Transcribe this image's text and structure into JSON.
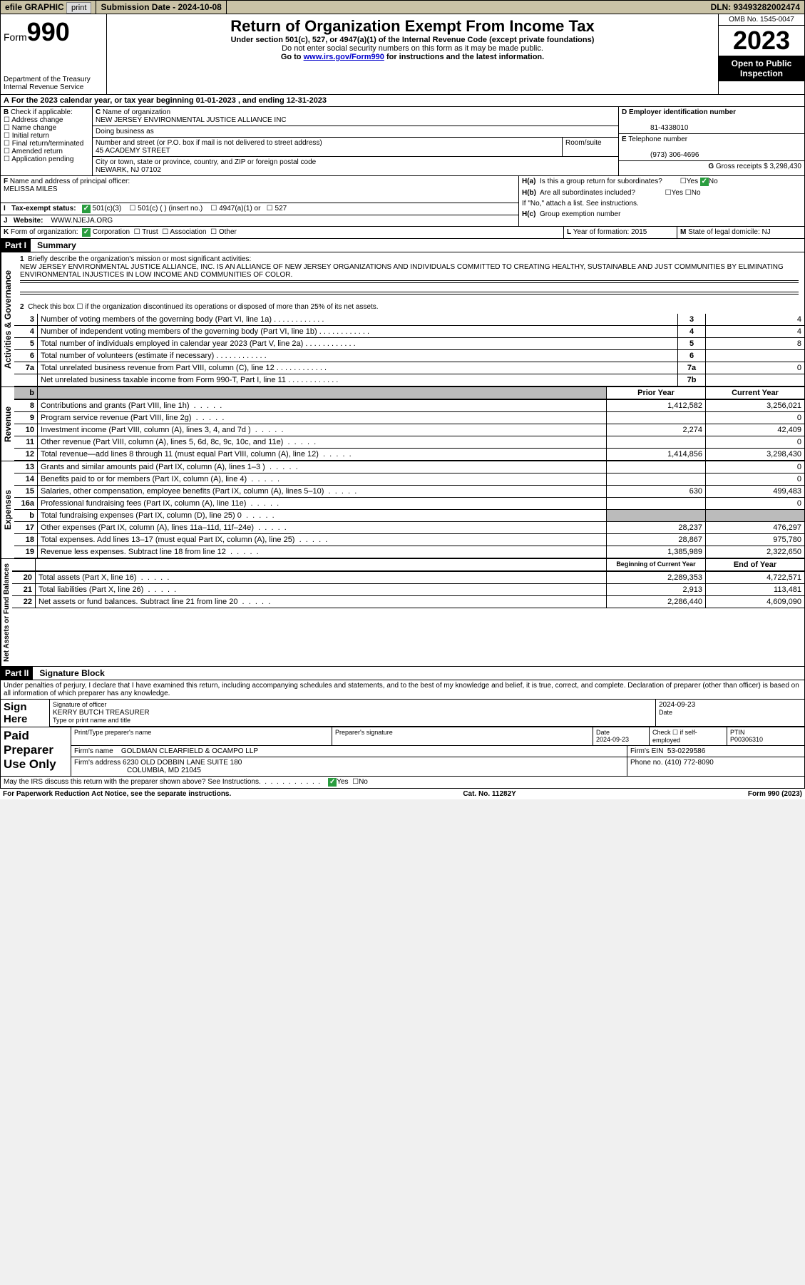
{
  "topbar": {
    "efile": "efile GRAPHIC",
    "print": "print",
    "subdate_label": "Submission Date - 2024-10-08",
    "dln": "DLN: 93493282002474"
  },
  "header": {
    "form_label": "Form",
    "form_number": "990",
    "dept": "Department of the Treasury",
    "irs": "Internal Revenue Service",
    "title": "Return of Organization Exempt From Income Tax",
    "subtitle": "Under section 501(c), 527, or 4947(a)(1) of the Internal Revenue Code (except private foundations)",
    "note1": "Do not enter social security numbers on this form as it may be made public.",
    "note2_pre": "Go to ",
    "note2_link": "www.irs.gov/Form990",
    "note2_post": " for instructions and the latest information.",
    "omb": "OMB No. 1545-0047",
    "year": "2023",
    "open": "Open to Public Inspection"
  },
  "A": {
    "line": "For the 2023 calendar year, or tax year beginning 01-01-2023    , and ending 12-31-2023"
  },
  "B": {
    "label": "Check if applicable:",
    "opts": [
      "Address change",
      "Name change",
      "Initial return",
      "Final return/terminated",
      "Amended return",
      "Application pending"
    ]
  },
  "C": {
    "name_label": "Name of organization",
    "name": "NEW JERSEY ENVIRONMENTAL JUSTICE ALLIANCE INC",
    "dba_label": "Doing business as",
    "addr_label": "Number and street (or P.O. box if mail is not delivered to street address)",
    "room_label": "Room/suite",
    "addr": "45 ACADEMY STREET",
    "city_label": "City or town, state or province, country, and ZIP or foreign postal code",
    "city": "NEWARK, NJ  07102"
  },
  "D": {
    "label": "Employer identification number",
    "value": "81-4338010"
  },
  "E": {
    "label": "Telephone number",
    "value": "(973) 306-4696"
  },
  "G": {
    "label": "Gross receipts $",
    "value": "3,298,430"
  },
  "F": {
    "label": "Name and address of principal officer:",
    "value": "MELISSA MILES"
  },
  "H": {
    "a": "Is this a group return for subordinates?",
    "b": "Are all subordinates included?",
    "bnote": "If \"No,\" attach a list. See instructions.",
    "c": "Group exemption number",
    "yes": "Yes",
    "no": "No"
  },
  "I": {
    "label": "Tax-exempt status:",
    "o1": "501(c)(3)",
    "o2": "501(c) (  ) (insert no.)",
    "o3": "4947(a)(1) or",
    "o4": "527"
  },
  "J": {
    "label": "Website:",
    "value": "WWW.NJEJA.ORG"
  },
  "K": {
    "label": "Form of organization:",
    "o1": "Corporation",
    "o2": "Trust",
    "o3": "Association",
    "o4": "Other"
  },
  "L": {
    "label": "Year of formation:",
    "value": "2015"
  },
  "M": {
    "label": "State of legal domicile:",
    "value": "NJ"
  },
  "part1": {
    "hdr": "Part I",
    "title": "Summary",
    "q1": "Briefly describe the organization's mission or most significant activities:",
    "q1text": "NEW JERSEY ENVIRONMENTAL JUSTICE ALLIANCE, INC. IS AN ALLIANCE OF NEW JERSEY ORGANIZATIONS AND INDIVIDUALS COMMITTED TO CREATING HEALTHY, SUSTAINABLE AND JUST COMMUNITIES BY ELIMINATING ENVIRONMENTAL INJUSTICES IN LOW INCOME AND COMMUNITIES OF COLOR.",
    "q2": "Check this box ☐ if the organization discontinued its operations or disposed of more than 25% of its net assets.",
    "rows_gov": [
      {
        "n": "3",
        "t": "Number of voting members of the governing body (Part VI, line 1a)",
        "b": "3",
        "v": "4"
      },
      {
        "n": "4",
        "t": "Number of independent voting members of the governing body (Part VI, line 1b)",
        "b": "4",
        "v": "4"
      },
      {
        "n": "5",
        "t": "Total number of individuals employed in calendar year 2023 (Part V, line 2a)",
        "b": "5",
        "v": "8"
      },
      {
        "n": "6",
        "t": "Total number of volunteers (estimate if necessary)",
        "b": "6",
        "v": ""
      },
      {
        "n": "7a",
        "t": "Total unrelated business revenue from Part VIII, column (C), line 12",
        "b": "7a",
        "v": "0"
      },
      {
        "n": "",
        "t": "Net unrelated business taxable income from Form 990-T, Part I, line 11",
        "b": "7b",
        "v": ""
      }
    ],
    "prior": "Prior Year",
    "current": "Current Year",
    "rows_rev": [
      {
        "n": "8",
        "t": "Contributions and grants (Part VIII, line 1h)",
        "p": "1,412,582",
        "c": "3,256,021"
      },
      {
        "n": "9",
        "t": "Program service revenue (Part VIII, line 2g)",
        "p": "",
        "c": "0"
      },
      {
        "n": "10",
        "t": "Investment income (Part VIII, column (A), lines 3, 4, and 7d )",
        "p": "2,274",
        "c": "42,409"
      },
      {
        "n": "11",
        "t": "Other revenue (Part VIII, column (A), lines 5, 6d, 8c, 9c, 10c, and 11e)",
        "p": "",
        "c": "0"
      },
      {
        "n": "12",
        "t": "Total revenue—add lines 8 through 11 (must equal Part VIII, column (A), line 12)",
        "p": "1,414,856",
        "c": "3,298,430"
      }
    ],
    "rows_exp": [
      {
        "n": "13",
        "t": "Grants and similar amounts paid (Part IX, column (A), lines 1–3 )",
        "p": "",
        "c": "0"
      },
      {
        "n": "14",
        "t": "Benefits paid to or for members (Part IX, column (A), line 4)",
        "p": "",
        "c": "0"
      },
      {
        "n": "15",
        "t": "Salaries, other compensation, employee benefits (Part IX, column (A), lines 5–10)",
        "p": "630",
        "c": "499,483"
      },
      {
        "n": "16a",
        "t": "Professional fundraising fees (Part IX, column (A), line 11e)",
        "p": "",
        "c": "0"
      },
      {
        "n": "b",
        "t": "Total fundraising expenses (Part IX, column (D), line 25) 0",
        "p": "GRAY",
        "c": "GRAY"
      },
      {
        "n": "17",
        "t": "Other expenses (Part IX, column (A), lines 11a–11d, 11f–24e)",
        "p": "28,237",
        "c": "476,297"
      },
      {
        "n": "18",
        "t": "Total expenses. Add lines 13–17 (must equal Part IX, column (A), line 25)",
        "p": "28,867",
        "c": "975,780"
      },
      {
        "n": "19",
        "t": "Revenue less expenses. Subtract line 18 from line 12",
        "p": "1,385,989",
        "c": "2,322,650"
      }
    ],
    "begin": "Beginning of Current Year",
    "end": "End of Year",
    "rows_net": [
      {
        "n": "20",
        "t": "Total assets (Part X, line 16)",
        "p": "2,289,353",
        "c": "4,722,571"
      },
      {
        "n": "21",
        "t": "Total liabilities (Part X, line 26)",
        "p": "2,913",
        "c": "113,481"
      },
      {
        "n": "22",
        "t": "Net assets or fund balances. Subtract line 21 from line 20",
        "p": "2,286,440",
        "c": "4,609,090"
      }
    ],
    "vlabels": {
      "gov": "Activities & Governance",
      "rev": "Revenue",
      "exp": "Expenses",
      "net": "Net Assets or Fund Balances"
    }
  },
  "part2": {
    "hdr": "Part II",
    "title": "Signature Block",
    "decl": "Under penalties of perjury, I declare that I have examined this return, including accompanying schedules and statements, and to the best of my knowledge and belief, it is true, correct, and complete. Declaration of preparer (other than officer) is based on all information of which preparer has any knowledge."
  },
  "sign": {
    "here": "Sign Here",
    "sig_label": "Signature of officer",
    "officer": "KERRY BUTCH  TREASURER",
    "type_label": "Type or print name and title",
    "date_label": "Date",
    "date": "2024-09-23"
  },
  "paid": {
    "label": "Paid Preparer Use Only",
    "col1": "Print/Type preparer's name",
    "col2": "Preparer's signature",
    "col3": "Date",
    "date": "2024-09-23",
    "col4": "Check ☐ if self-employed",
    "col5": "PTIN",
    "ptin": "P00306310",
    "firm_label": "Firm's name",
    "firm": "GOLDMAN CLEARFIELD & OCAMPO LLP",
    "ein_label": "Firm's EIN",
    "ein": "53-0229586",
    "addr_label": "Firm's address",
    "addr": "6230 OLD DOBBIN LANE SUITE 180",
    "city": "COLUMBIA, MD  21045",
    "phone_label": "Phone no.",
    "phone": "(410) 772-8090"
  },
  "discuss": {
    "text": "May the IRS discuss this return with the preparer shown above? See Instructions.",
    "yes": "Yes",
    "no": "No"
  },
  "footer": {
    "left": "For Paperwork Reduction Act Notice, see the separate instructions.",
    "mid": "Cat. No. 11282Y",
    "right": "Form 990 (2023)"
  }
}
